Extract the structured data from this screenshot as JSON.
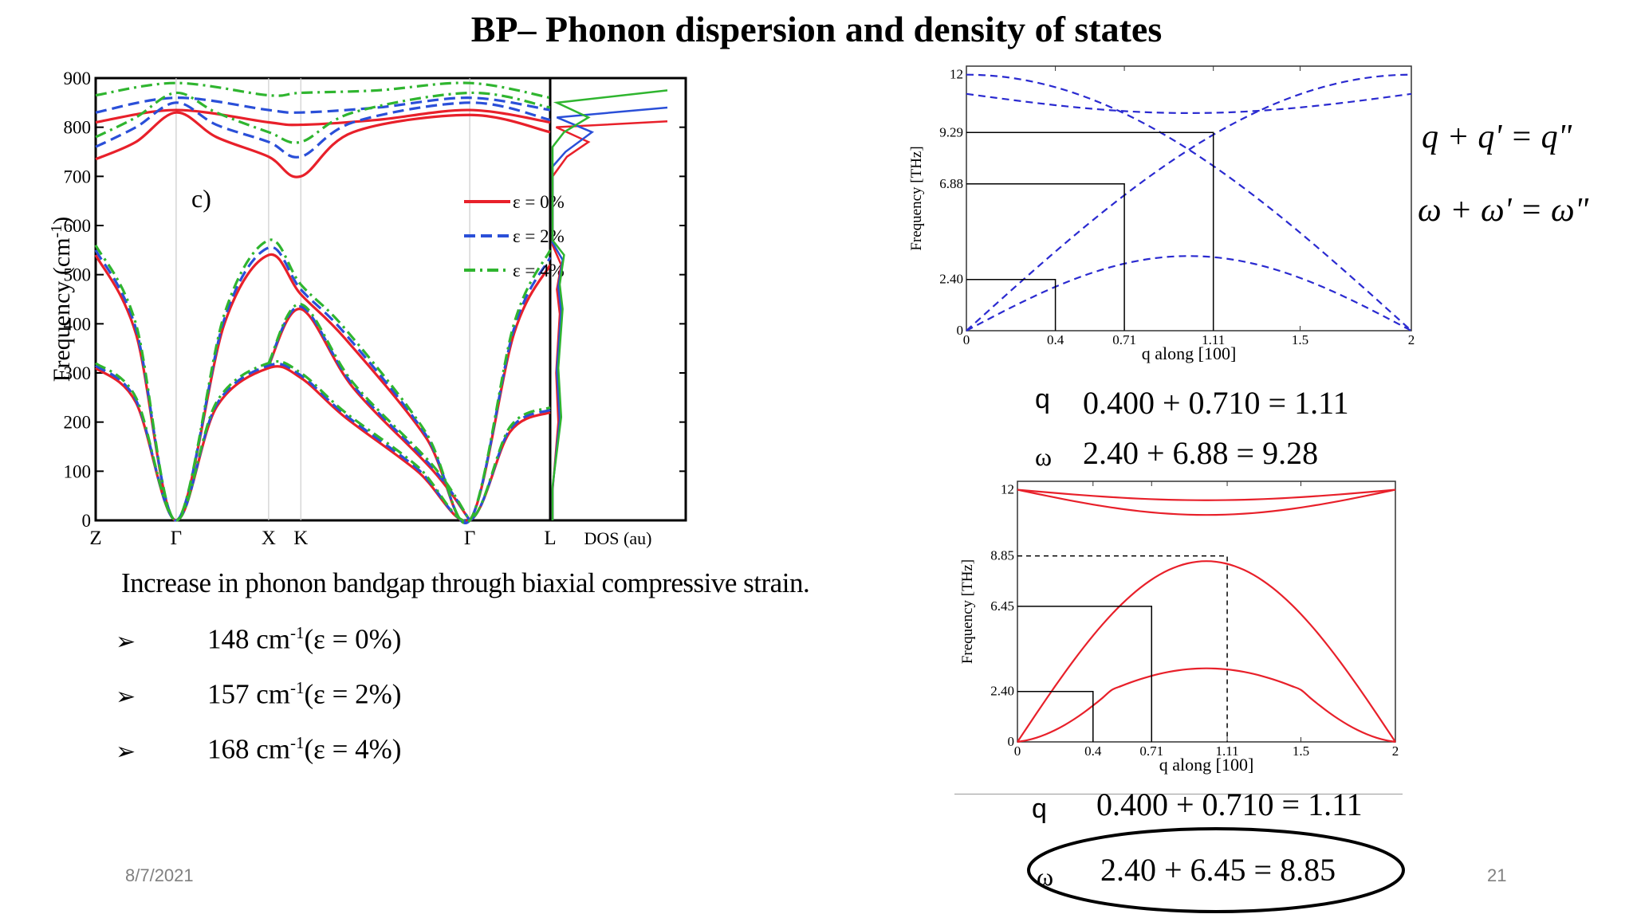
{
  "slide": {
    "title": "BP– Phonon dispersion and density of states",
    "caption": "Increase in phonon bandgap through biaxial compressive strain.",
    "bullet_symbol": "➢",
    "bullets": [
      {
        "value": "148 cm",
        "unit_sup": "-1",
        "strain": "(ε = 0%)"
      },
      {
        "value": "157 cm",
        "unit_sup": "-1",
        "strain": "(ε = 2%)"
      },
      {
        "value": "168 cm",
        "unit_sup": "-1",
        "strain": "(ε = 4%)"
      }
    ],
    "date": "8/7/2021",
    "page_number": "21",
    "rel_q": "q + q' = q\"",
    "rel_w": "ω + ω' = ω\"",
    "eq1_q_symbol": "q",
    "eq1_q": "0.400 + 0.710 = 1.11",
    "eq1_w_symbol": "ω",
    "eq1_w": "2.40 + 6.88 = 9.28",
    "eq2_q_symbol": "q",
    "eq2_q": "0.400 + 0.710 = 1.11",
    "eq2_w_symbol": "ω",
    "eq2_w": "2.40 + 6.45 = 8.85"
  },
  "chart_data": [
    {
      "type": "line",
      "panel_label": "c)",
      "ylabel": "Frequency (cm-1)",
      "ylim": [
        0,
        900
      ],
      "yticks": [
        0,
        100,
        200,
        300,
        400,
        500,
        600,
        700,
        800,
        900
      ],
      "xticks": [
        "Z",
        "Γ",
        "X",
        "K",
        "Γ",
        "L"
      ],
      "dos_label": "DOS (au)",
      "legend": [
        "ε = 0%",
        "ε = 2%",
        "ε = 4%"
      ],
      "colors": {
        "eps0": "#e8202a",
        "eps2": "#2a4fd8",
        "eps4": "#2fb52f"
      },
      "x_path": [
        0,
        1,
        2.15,
        2.55,
        4.65,
        5.65
      ],
      "series": [
        {
          "name": "ε = 0%",
          "bands": [
            [
              [
                0,
                310
              ],
              [
                0.5,
                240
              ],
              [
                1,
                0
              ],
              [
                1.5,
                230
              ],
              [
                2.15,
                310
              ],
              [
                2.55,
                290
              ],
              [
                3.1,
                210
              ],
              [
                4,
                100
              ],
              [
                4.65,
                0
              ],
              [
                5.15,
                180
              ],
              [
                5.65,
                220
              ]
            ],
            [
              [
                0,
                540
              ],
              [
                0.5,
                380
              ],
              [
                1,
                0
              ],
              [
                1.6,
                400
              ],
              [
                2.15,
                540
              ],
              [
                2.55,
                460
              ],
              [
                3.1,
                370
              ],
              [
                4.1,
                170
              ],
              [
                4.65,
                0
              ],
              [
                5.2,
                380
              ],
              [
                5.65,
                520
              ]
            ],
            [
              [
                2.15,
                315
              ],
              [
                2.55,
                430
              ],
              [
                3.2,
                270
              ],
              [
                4.2,
                100
              ],
              [
                4.65,
                0
              ]
            ],
            [
              [
                0,
                735
              ],
              [
                0.5,
                770
              ],
              [
                1,
                830
              ],
              [
                1.5,
                780
              ],
              [
                2.15,
                740
              ],
              [
                2.55,
                700
              ],
              [
                3.2,
                790
              ],
              [
                4.65,
                825
              ],
              [
                5.65,
                790
              ]
            ],
            [
              [
                0,
                810
              ],
              [
                1,
                835
              ],
              [
                2.15,
                810
              ],
              [
                2.55,
                805
              ],
              [
                3.5,
                815
              ],
              [
                4.65,
                835
              ],
              [
                5.65,
                810
              ]
            ]
          ]
        },
        {
          "name": "ε = 2%",
          "bands": [
            [
              [
                0,
                315
              ],
              [
                0.5,
                245
              ],
              [
                1,
                0
              ],
              [
                1.5,
                235
              ],
              [
                2.15,
                315
              ],
              [
                2.55,
                295
              ],
              [
                3.1,
                215
              ],
              [
                4,
                105
              ],
              [
                4.65,
                0
              ],
              [
                5.15,
                185
              ],
              [
                5.65,
                225
              ]
            ],
            [
              [
                0,
                550
              ],
              [
                0.5,
                390
              ],
              [
                1,
                0
              ],
              [
                1.6,
                410
              ],
              [
                2.15,
                555
              ],
              [
                2.55,
                470
              ],
              [
                3.1,
                380
              ],
              [
                4.1,
                175
              ],
              [
                4.65,
                0
              ],
              [
                5.2,
                390
              ],
              [
                5.65,
                535
              ]
            ],
            [
              [
                2.15,
                318
              ],
              [
                2.55,
                435
              ],
              [
                3.2,
                275
              ],
              [
                4.2,
                105
              ],
              [
                4.65,
                0
              ]
            ],
            [
              [
                0,
                760
              ],
              [
                0.5,
                800
              ],
              [
                1,
                850
              ],
              [
                1.5,
                805
              ],
              [
                2.15,
                770
              ],
              [
                2.55,
                740
              ],
              [
                3.2,
                810
              ],
              [
                4.65,
                850
              ],
              [
                5.65,
                815
              ]
            ],
            [
              [
                0,
                830
              ],
              [
                1,
                860
              ],
              [
                2.15,
                835
              ],
              [
                2.55,
                830
              ],
              [
                3.5,
                840
              ],
              [
                4.65,
                860
              ],
              [
                5.65,
                835
              ]
            ]
          ]
        },
        {
          "name": "ε = 4%",
          "bands": [
            [
              [
                0,
                320
              ],
              [
                0.5,
                250
              ],
              [
                1,
                0
              ],
              [
                1.5,
                240
              ],
              [
                2.15,
                320
              ],
              [
                2.55,
                300
              ],
              [
                3.1,
                220
              ],
              [
                4,
                110
              ],
              [
                4.65,
                0
              ],
              [
                5.15,
                190
              ],
              [
                5.65,
                230
              ]
            ],
            [
              [
                0,
                560
              ],
              [
                0.5,
                400
              ],
              [
                1,
                0
              ],
              [
                1.6,
                420
              ],
              [
                2.15,
                570
              ],
              [
                2.55,
                480
              ],
              [
                3.1,
                390
              ],
              [
                4.1,
                180
              ],
              [
                4.65,
                0
              ],
              [
                5.2,
                400
              ],
              [
                5.65,
                550
              ]
            ],
            [
              [
                2.15,
                320
              ],
              [
                2.55,
                440
              ],
              [
                3.2,
                280
              ],
              [
                4.2,
                110
              ],
              [
                4.65,
                0
              ]
            ],
            [
              [
                0,
                780
              ],
              [
                0.5,
                820
              ],
              [
                1,
                870
              ],
              [
                1.5,
                830
              ],
              [
                2.15,
                790
              ],
              [
                2.55,
                770
              ],
              [
                3.2,
                830
              ],
              [
                4.65,
                870
              ],
              [
                5.65,
                840
              ]
            ],
            [
              [
                0,
                865
              ],
              [
                1,
                890
              ],
              [
                2.15,
                865
              ],
              [
                2.55,
                870
              ],
              [
                3.5,
                875
              ],
              [
                4.65,
                890
              ],
              [
                5.65,
                860
              ]
            ]
          ]
        }
      ]
    },
    {
      "type": "line",
      "ylabel": "Frequency [THz]",
      "xlabel": "q along [100]",
      "xlim": [
        0,
        2
      ],
      "ylim": [
        0,
        12.4
      ],
      "xticks": [
        "0",
        "0.4",
        "0.71",
        "1.11",
        "1.5",
        "2"
      ],
      "xtick_values": [
        0,
        0.4,
        0.71,
        1.11,
        1.5,
        2
      ],
      "yticks": [
        "0",
        "2.40",
        "6.88",
        "9.29",
        "12"
      ],
      "ytick_values": [
        0,
        2.4,
        6.88,
        9.29,
        12
      ],
      "color": "#2a2ad0",
      "line_style": "dashed",
      "markers": [
        {
          "q": 0.4,
          "w": 2.4
        },
        {
          "q": 0.71,
          "w": 6.88
        },
        {
          "q": 1.11,
          "w": 9.29
        }
      ]
    },
    {
      "type": "line",
      "ylabel": "Frequency [THz]",
      "xlabel": "q along [100]",
      "xlim": [
        0,
        2
      ],
      "ylim": [
        0,
        12.4
      ],
      "xticks": [
        "0",
        "0.4",
        "0.71",
        "1.11",
        "1.5",
        "2"
      ],
      "xtick_values": [
        0,
        0.4,
        0.71,
        1.11,
        1.5,
        2
      ],
      "yticks": [
        "0",
        "2.40",
        "6.45",
        "8.85",
        "12"
      ],
      "ytick_values": [
        0,
        2.4,
        6.45,
        8.85,
        12
      ],
      "color": "#e8202a",
      "line_style": "solid",
      "markers": [
        {
          "q": 0.4,
          "w": 2.4
        },
        {
          "q": 0.71,
          "w": 6.45
        }
      ],
      "dashed_marker": {
        "q": 1.11,
        "w": 8.85
      }
    }
  ]
}
